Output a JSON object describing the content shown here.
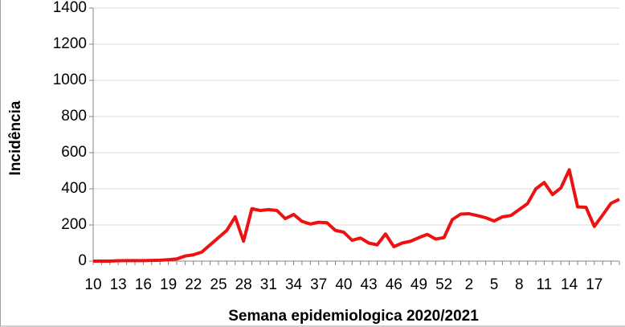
{
  "chart_data": {
    "type": "line",
    "x_label": "Semana epidemiologica 2020/2021",
    "y_label": "Incidência",
    "categories": [
      "10",
      null,
      null,
      "13",
      null,
      null,
      "16",
      null,
      null,
      "19",
      null,
      null,
      "22",
      null,
      null,
      "25",
      null,
      null,
      "28",
      null,
      null,
      "31",
      null,
      null,
      "34",
      null,
      null,
      "37",
      null,
      null,
      "40",
      null,
      null,
      "43",
      null,
      null,
      "46",
      null,
      null,
      "49",
      null,
      null,
      "52",
      null,
      null,
      "2",
      null,
      null,
      "5",
      null,
      null,
      "8",
      null,
      null,
      "11",
      null,
      null,
      "14",
      null,
      null,
      "17",
      null,
      null,
      null
    ],
    "series": [
      {
        "name": "Incidência",
        "color": "#ee1111",
        "values": [
          0,
          0,
          0,
          2,
          3,
          3,
          3,
          4,
          5,
          8,
          12,
          28,
          35,
          50,
          90,
          130,
          170,
          245,
          110,
          290,
          280,
          285,
          280,
          235,
          258,
          220,
          205,
          215,
          212,
          170,
          160,
          115,
          128,
          100,
          90,
          150,
          80,
          100,
          110,
          130,
          148,
          122,
          130,
          230,
          260,
          262,
          252,
          240,
          222,
          245,
          252,
          285,
          318,
          400,
          435,
          368,
          405,
          505,
          300,
          298,
          192,
          255,
          320,
          342
        ]
      }
    ],
    "ylim": [
      0,
      1400
    ],
    "yticks": [
      0,
      200,
      400,
      600,
      800,
      1000,
      1200,
      1400
    ],
    "grid": true
  }
}
